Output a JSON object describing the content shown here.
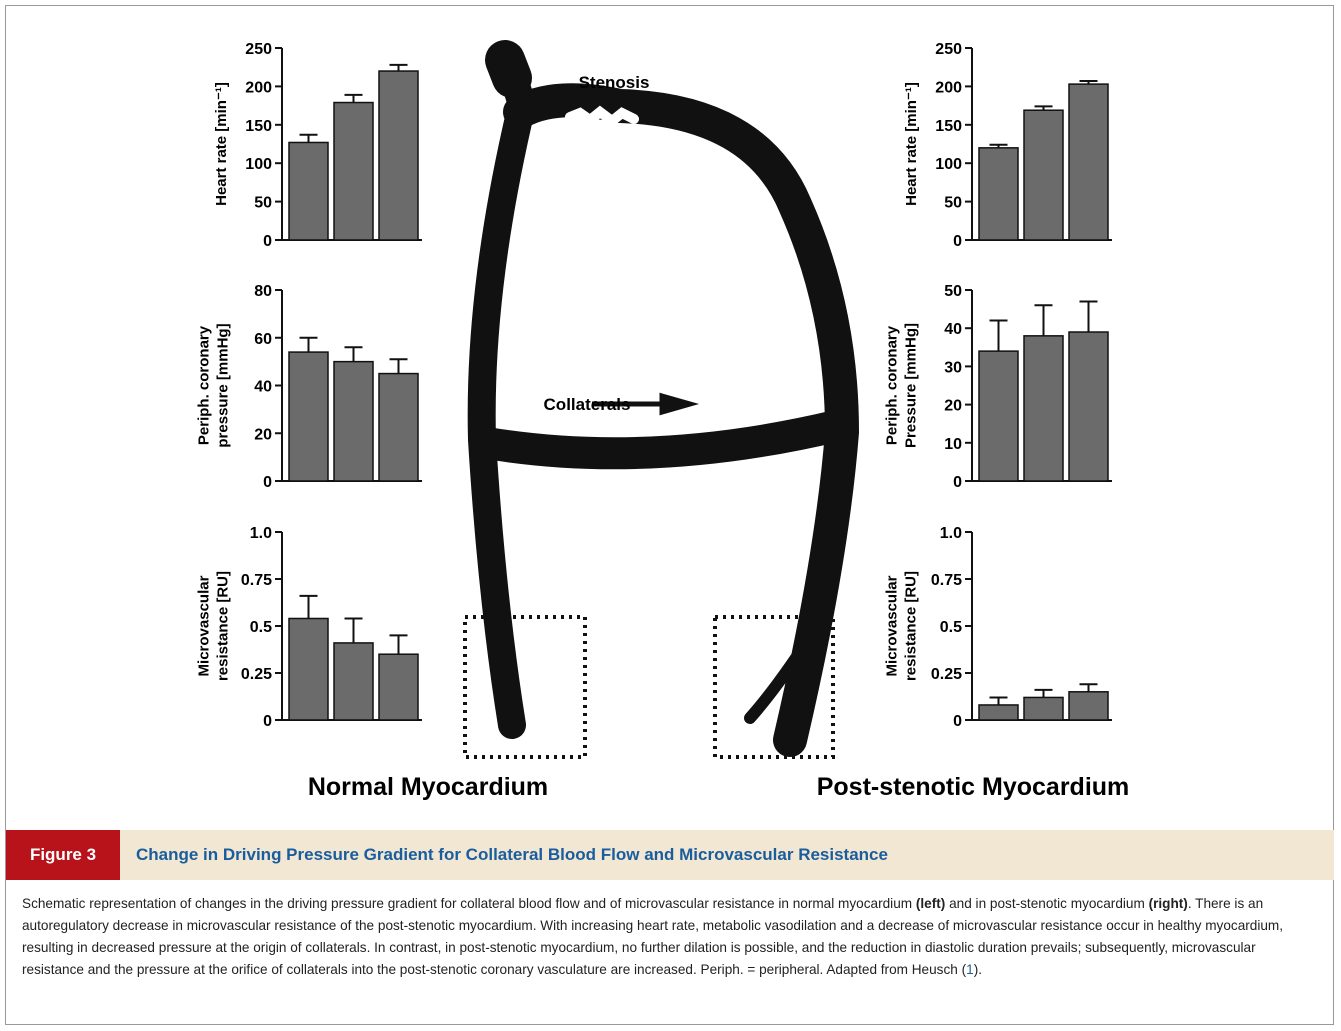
{
  "chart_data": [
    {
      "type": "bar",
      "ylabel": [
        "Heart rate [min⁻¹]"
      ],
      "categories": [
        null,
        null,
        null
      ],
      "values": [
        127,
        179,
        220
      ],
      "errors": [
        10,
        10,
        8
      ],
      "color": "#6b6b6b",
      "ylim": [
        0,
        250
      ],
      "yticks": [
        0,
        50,
        100,
        150,
        200,
        250
      ]
    },
    {
      "type": "bar",
      "ylabel": [
        "Periph. coronary",
        "pressure [mmHg]"
      ],
      "categories": [
        null,
        null,
        null
      ],
      "values": [
        54,
        50,
        45
      ],
      "errors": [
        6,
        6,
        6
      ],
      "color": "#6b6b6b",
      "ylim": [
        0,
        80
      ],
      "yticks": [
        0,
        20,
        40,
        60,
        80
      ]
    },
    {
      "type": "bar",
      "ylabel": [
        "Microvascular",
        "resistance [RU]"
      ],
      "categories": [
        null,
        null,
        null
      ],
      "values": [
        0.54,
        0.41,
        0.35
      ],
      "errors": [
        0.12,
        0.13,
        0.1
      ],
      "color": "#6b6b6b",
      "ylim": [
        0,
        1
      ],
      "yticks": [
        0,
        0.25,
        0.5,
        0.75,
        {
          "value": 1,
          "label": "1.0"
        }
      ]
    },
    {
      "type": "bar",
      "ylabel": [
        "Heart rate [min⁻¹]"
      ],
      "categories": [
        null,
        null,
        null
      ],
      "values": [
        120,
        169,
        203
      ],
      "errors": [
        4,
        5,
        4
      ],
      "color": "#6b6b6b",
      "ylim": [
        0,
        250
      ],
      "yticks": [
        0,
        50,
        100,
        150,
        200,
        250
      ]
    },
    {
      "type": "bar",
      "ylabel": [
        "Periph. coronary",
        "Pressure [mmHg]"
      ],
      "categories": [
        null,
        null,
        null
      ],
      "values": [
        34,
        38,
        39
      ],
      "errors": [
        8,
        8,
        8
      ],
      "color": "#6b6b6b",
      "ylim": [
        0,
        50
      ],
      "yticks": [
        0,
        10,
        20,
        30,
        40,
        50
      ]
    },
    {
      "type": "bar",
      "ylabel": [
        "Microvascular",
        "resistance [RU]"
      ],
      "categories": [
        null,
        null,
        null
      ],
      "values": [
        0.08,
        0.12,
        0.15
      ],
      "errors": [
        0.04,
        0.04,
        0.04
      ],
      "color": "#6b6b6b",
      "ylim": [
        0,
        1
      ],
      "yticks": [
        0,
        0.25,
        0.5,
        0.75,
        {
          "value": 1,
          "label": "1.0"
        }
      ]
    }
  ],
  "diagram": {
    "stenosis": "Stenosis",
    "collaterals": "Collaterals",
    "left_title": "Normal Myocardium",
    "right_title": "Post-stenotic Myocardium"
  },
  "figure": {
    "label": "Figure 3",
    "title": "Change in Driving Pressure Gradient for Collateral Blood Flow and Microvascular Resistance",
    "caption": [
      "Schematic representation of changes in the driving pressure gradient for collateral blood flow and of microvascular resistance in normal myocardium ",
      "(left)",
      " and in post-stenotic myocardium ",
      "(right)",
      ". There is an autoregulatory decrease in microvascular resistance of the post-stenotic myocardium. With increasing heart rate, metabolic vasodilation and a decrease of microvascular resistance occur in healthy myocardium, resulting in decreased pressure at the origin of collaterals. In contrast, in post-stenotic myocardium, no further dilation is possible, and the reduction in diastolic duration prevails; subsequently, microvascular resistance and the pressure at the orifice of collaterals into the post-stenotic coronary vasculature are increased. Periph. = peripheral. Adapted from Heusch (",
      "1",
      ")."
    ]
  }
}
